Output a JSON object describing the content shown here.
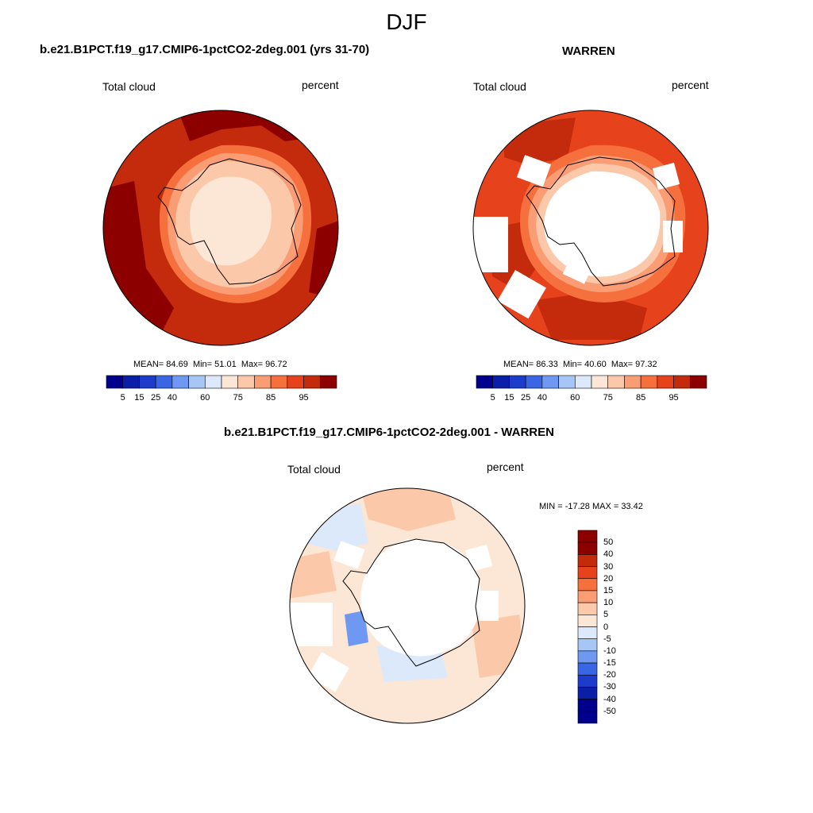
{
  "header": {
    "title": "DJF"
  },
  "panels": {
    "model": {
      "title": "b.e21.B1PCT.f19_g17.CMIP6-1pctCO2-2deg.001 (yrs 31-70)",
      "left_label": "Total cloud",
      "right_label": "percent",
      "stats": {
        "mean_label": "MEAN=",
        "mean": "84.69",
        "min_label": "Min=",
        "min": "51.01",
        "max_label": "Max=",
        "max": "96.72"
      }
    },
    "obs": {
      "title": "WARREN",
      "left_label": "Total cloud",
      "right_label": "percent",
      "stats": {
        "mean_label": "MEAN=",
        "mean": "86.33",
        "min_label": "Min=",
        "min": "40.60",
        "max_label": "Max=",
        "max": "97.32"
      }
    },
    "diff": {
      "title": "b.e21.B1PCT.f19_g17.CMIP6-1pctCO2-2deg.001 - WARREN",
      "left_label": "Total cloud",
      "right_label": "percent",
      "minmax": "MIN = -17.28 MAX =  33.42"
    }
  },
  "colorbar_abs": {
    "colors": [
      "#00008c",
      "#0a1ea8",
      "#1e3ccc",
      "#3a66e6",
      "#6e98f2",
      "#a6c6f6",
      "#dce9fa",
      "#fce7d6",
      "#fcc8aa",
      "#fa9c74",
      "#f6703e",
      "#e6421c",
      "#c42a0c",
      "#8c0000"
    ],
    "tick_labels": [
      "5",
      "15",
      "25",
      "40",
      "60",
      "75",
      "85",
      "95"
    ]
  },
  "colorbar_diff": {
    "colors": [
      "#00008c",
      "#0a1ea8",
      "#1e3ccc",
      "#3a66e6",
      "#6e98f2",
      "#a6c6f6",
      "#dce9fa",
      "#fce7d6",
      "#fcc8aa",
      "#fa9c74",
      "#f6703e",
      "#e6421c",
      "#c42a0c",
      "#8c0000"
    ],
    "tick_labels": [
      "50",
      "40",
      "30",
      "20",
      "15",
      "10",
      "5",
      "0",
      "-5",
      "-10",
      "-15",
      "-20",
      "-30",
      "-40",
      "-50"
    ]
  },
  "map_colors": {
    "model_ocean": "#c42a0c",
    "model_dark": "#8c0000",
    "obs_ocean": "#e6421c",
    "obs_dark": "#c42a0c",
    "ring_1": "#f6703e",
    "ring_2": "#fa9c74",
    "ring_3": "#fcc8aa",
    "ring_4": "#fce7d6",
    "diff_base": "#fce7d6",
    "diff_warm": "#fcc8aa",
    "diff_cool": "#dce9fa",
    "diff_blue": "#6e98f2",
    "missing": "#ffffff",
    "coast": "#000000"
  }
}
